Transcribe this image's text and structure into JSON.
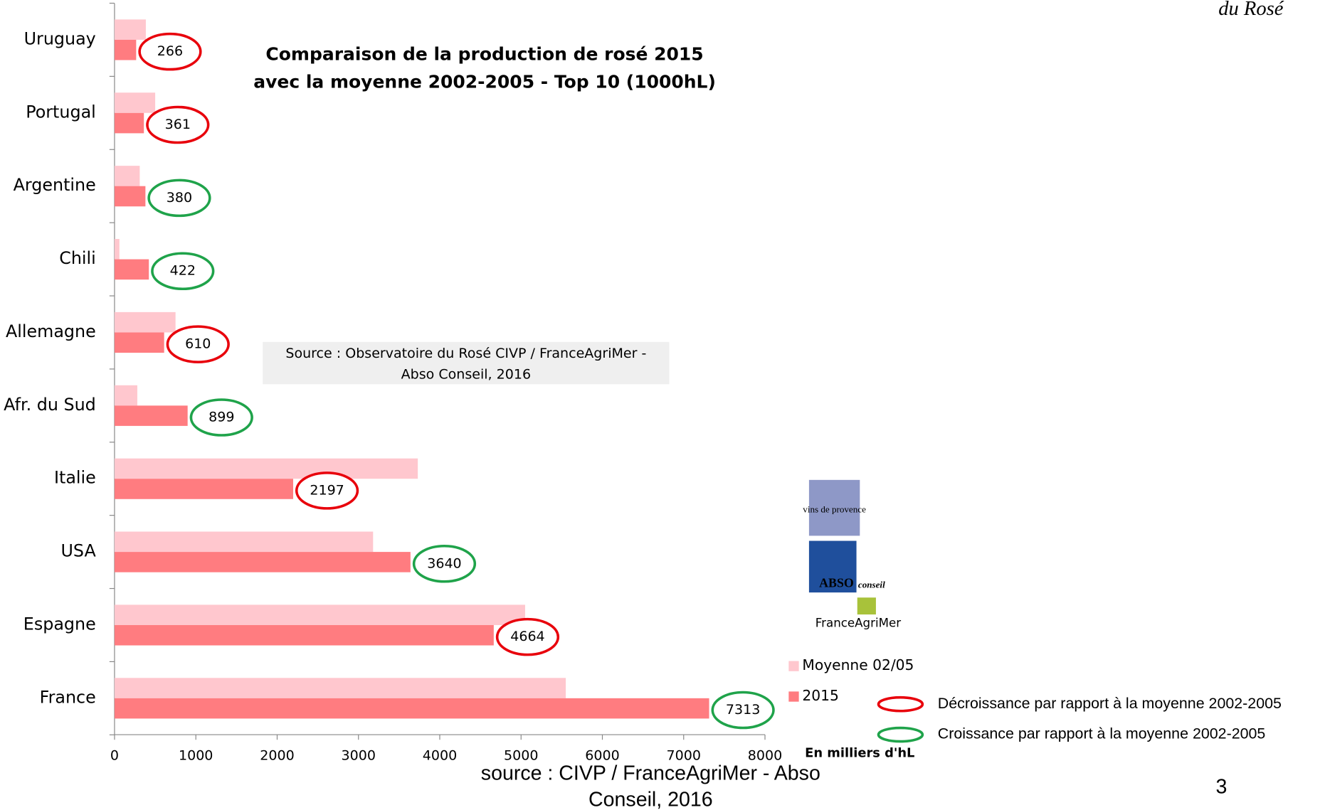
{
  "header_fragment": "du Rosé",
  "chart_data": {
    "type": "bar",
    "orientation": "horizontal",
    "title": [
      "Comparaison de la production de rosé 2015",
      "avec la moyenne 2002-2005 - Top 10 (1000hL)"
    ],
    "categories": [
      "Uruguay",
      "Portugal",
      "Argentine",
      "Chili",
      "Allemagne",
      "Afr. du Sud",
      "Italie",
      "USA",
      "Espagne",
      "France"
    ],
    "series": [
      {
        "name": "Moyenne 02/05",
        "color": "#ffc7ce",
        "values": [
          385,
          500,
          310,
          60,
          750,
          280,
          3730,
          3180,
          5050,
          5550
        ]
      },
      {
        "name": "2015",
        "color": "#ff7c80",
        "values": [
          266,
          361,
          380,
          422,
          610,
          899,
          2197,
          3640,
          4664,
          7313
        ],
        "data_labels": true
      }
    ],
    "highlight_colors": [
      "#e8000b",
      "#e8000b",
      "#1fa34a",
      "#1fa34a",
      "#e8000b",
      "#1fa34a",
      "#e8000b",
      "#1fa34a",
      "#e8000b",
      "#1fa34a"
    ],
    "xlim": [
      0,
      8000
    ],
    "xticks": [
      0,
      1000,
      2000,
      3000,
      4000,
      5000,
      6000,
      7000,
      8000
    ],
    "x_unit_note": "En milliers d'hL",
    "source_box": [
      "Source : Observatoire du Rosé CIVP / FranceAgriMer -",
      "Abso Conseil, 2016"
    ],
    "highlight_legend": [
      {
        "color": "#e8000b",
        "label": "Décroissance par rapport à la moyenne 2002-2005"
      },
      {
        "color": "#1fa34a",
        "label": "Croissance par rapport à la moyenne 2002-2005"
      }
    ]
  },
  "logos": [
    "vins de provence",
    "ABSO",
    "conseil",
    "FranceAgriMer"
  ],
  "footer": {
    "source": [
      "source : CIVP / FranceAgriMer - Abso",
      "Conseil, 2016"
    ],
    "page_number": "3"
  }
}
